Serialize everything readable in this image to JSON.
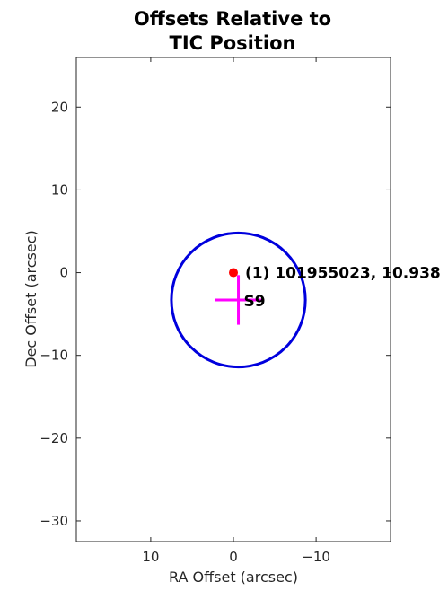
{
  "chart_data": {
    "type": "scatter",
    "title_lines": [
      "Offsets Relative to",
      "TIC Position"
    ],
    "xlabel": "RA Offset (arcsec)",
    "ylabel": "Dec Offset (arcsec)",
    "xlim": [
      19,
      -19
    ],
    "ylim": [
      -32.5,
      26
    ],
    "x_reversed": true,
    "grid": false,
    "xticks": [
      10,
      0,
      -10
    ],
    "xtick_labels": [
      "10",
      "0",
      "−10"
    ],
    "yticks": [
      20,
      10,
      0,
      -10,
      -20,
      -30
    ],
    "ytick_labels": [
      "20",
      "10",
      "0",
      "−10",
      "−20",
      "−30"
    ],
    "target": {
      "x": 0,
      "y": 0,
      "label": "(1) 101955023, 10.938",
      "color": "#ff0000"
    },
    "centroid": {
      "x": -0.6,
      "y": -3.3,
      "err_x": 2.8,
      "err_y": 3.0,
      "label": "S9",
      "color": "#ff00ff"
    },
    "aperture_circle": {
      "center_x": -0.6,
      "center_y": -3.3,
      "radius": 8.1,
      "color": "#0000dd"
    }
  }
}
